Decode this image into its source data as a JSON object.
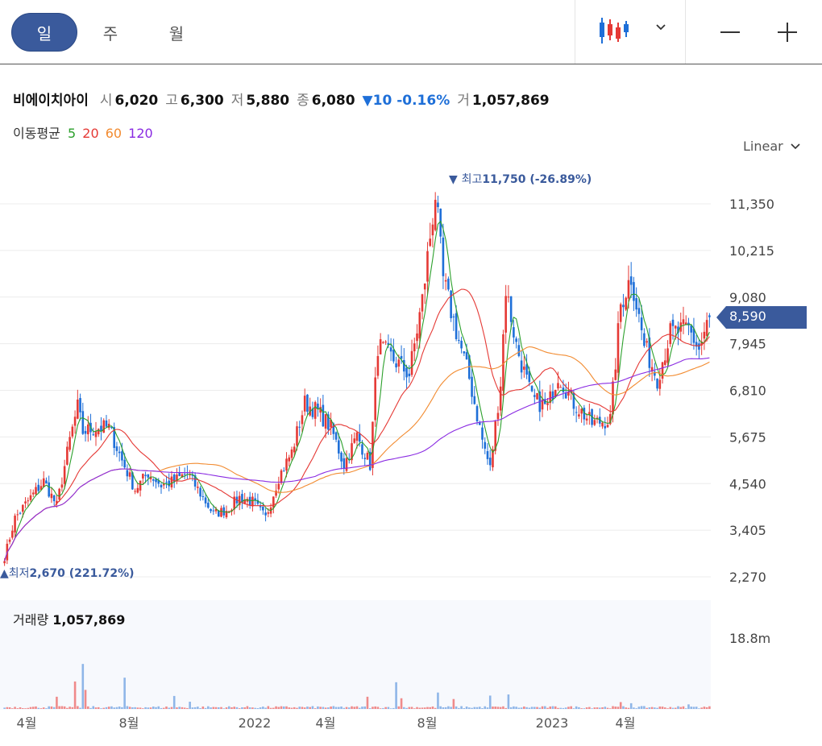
{
  "toolbar": {
    "tabs": [
      {
        "label": "일",
        "active": true
      },
      {
        "label": "주",
        "active": false
      },
      {
        "label": "월",
        "active": false
      }
    ],
    "chart_type_icon": "candlestick-icon",
    "zoom_out_icon": "minus-icon",
    "zoom_in_icon": "plus-icon"
  },
  "quote": {
    "name": "비에이치아이",
    "open_label": "시",
    "open": "6,020",
    "high_label": "고",
    "high": "6,300",
    "low_label": "저",
    "low": "5,880",
    "close_label": "종",
    "close": "6,080",
    "change_arrow": "▼",
    "change": "10",
    "change_pct": "-0.16%",
    "volume_label": "거",
    "volume": "1,057,869"
  },
  "moving_average": {
    "title": "이동평균",
    "periods": [
      {
        "label": "5",
        "color": "#2ca02c"
      },
      {
        "label": "20",
        "color": "#e53935"
      },
      {
        "label": "60",
        "color": "#f28b30"
      },
      {
        "label": "120",
        "color": "#8a2be2"
      }
    ]
  },
  "scale": {
    "label": "Linear"
  },
  "current_price": "8,590",
  "volume_panel": {
    "title": "거래량",
    "value": "1,057,869",
    "axis_max": "18.8m"
  },
  "colors": {
    "up": "#e53935",
    "down": "#1e6fd8",
    "accent": "#3a5a9c"
  },
  "chart_data": {
    "type": "candlestick",
    "y_ticks": [
      "11,350",
      "10,215",
      "9,080",
      "7,945",
      "6,810",
      "5,675",
      "4,540",
      "3,405",
      "2,270"
    ],
    "ylim": [
      2270,
      12000
    ],
    "x_ticks": [
      "4월",
      "8월",
      "2022",
      "4월",
      "8월",
      "2023",
      "4월"
    ],
    "annotations": {
      "high": {
        "label": "최고",
        "value": "11,750",
        "pct": "(-26.89%)",
        "marker": "▼"
      },
      "low": {
        "label": "최저",
        "value": "2,670",
        "pct": "(221.72%)",
        "marker": "▲"
      }
    },
    "close_anchors": [
      [
        0,
        2750
      ],
      [
        4,
        3700
      ],
      [
        10,
        4200
      ],
      [
        15,
        4600
      ],
      [
        20,
        4000
      ],
      [
        25,
        5600
      ],
      [
        28,
        6400
      ],
      [
        30,
        5800
      ],
      [
        35,
        5900
      ],
      [
        40,
        5900
      ],
      [
        45,
        5100
      ],
      [
        50,
        4400
      ],
      [
        55,
        4800
      ],
      [
        60,
        4500
      ],
      [
        65,
        4600
      ],
      [
        70,
        4800
      ],
      [
        75,
        4300
      ],
      [
        80,
        3800
      ],
      [
        85,
        3900
      ],
      [
        90,
        4200
      ],
      [
        95,
        4100
      ],
      [
        100,
        3700
      ],
      [
        105,
        4700
      ],
      [
        110,
        5300
      ],
      [
        115,
        6500
      ],
      [
        120,
        6300
      ],
      [
        125,
        5900
      ],
      [
        130,
        5000
      ],
      [
        135,
        5700
      ],
      [
        140,
        5000
      ],
      [
        143,
        7900
      ],
      [
        150,
        7500
      ],
      [
        155,
        7200
      ],
      [
        160,
        9000
      ],
      [
        165,
        11600
      ],
      [
        168,
        9500
      ],
      [
        172,
        8500
      ],
      [
        178,
        7100
      ],
      [
        183,
        5600
      ],
      [
        186,
        4900
      ],
      [
        190,
        7000
      ],
      [
        192,
        9300
      ],
      [
        196,
        7900
      ],
      [
        202,
        6600
      ],
      [
        208,
        6400
      ],
      [
        212,
        7200
      ],
      [
        218,
        6500
      ],
      [
        225,
        6000
      ],
      [
        232,
        6100
      ],
      [
        236,
        8900
      ],
      [
        240,
        9600
      ],
      [
        245,
        7900
      ],
      [
        250,
        7100
      ],
      [
        255,
        8200
      ],
      [
        262,
        8300
      ],
      [
        266,
        7800
      ],
      [
        270,
        8590
      ]
    ],
    "volume_ylim": [
      0,
      18800000
    ],
    "volume_spikes": [
      [
        20,
        3200000
      ],
      [
        27,
        7200000
      ],
      [
        30,
        11800000
      ],
      [
        31,
        5000000
      ],
      [
        46,
        8200000
      ],
      [
        65,
        3400000
      ],
      [
        71,
        1900000
      ],
      [
        139,
        3200000
      ],
      [
        150,
        7000000
      ],
      [
        152,
        2800000
      ],
      [
        166,
        4300000
      ],
      [
        172,
        2600000
      ],
      [
        186,
        3500000
      ],
      [
        193,
        3800000
      ],
      [
        236,
        1800000
      ],
      [
        240,
        1500000
      ],
      [
        262,
        1200000
      ]
    ]
  }
}
